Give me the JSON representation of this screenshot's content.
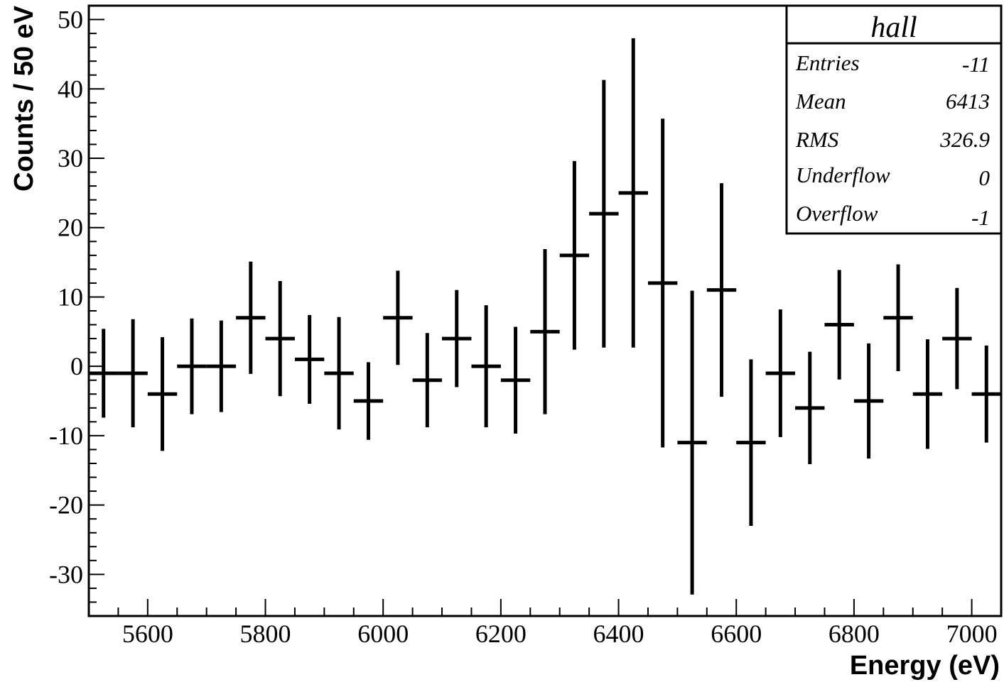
{
  "chart_data": {
    "type": "scatter",
    "style": "histogram-error-bars",
    "xlabel": "Energy (eV)",
    "ylabel": "Counts / 50 eV",
    "xlim": [
      5500,
      7050
    ],
    "ylim": [
      -36,
      52
    ],
    "x_ticks": [
      5600,
      5800,
      6000,
      6200,
      6400,
      6600,
      6800,
      7000
    ],
    "y_ticks": [
      -30,
      -20,
      -10,
      0,
      10,
      20,
      30,
      40,
      50
    ],
    "bin_width": 50,
    "series": [
      {
        "x": [
          5525,
          5575,
          5625,
          5675,
          5725,
          5775,
          5825,
          5875,
          5925,
          5975,
          6025,
          6075,
          6125,
          6175,
          6225,
          6275,
          6325,
          6375,
          6425,
          6475,
          6525,
          6575,
          6625,
          6675,
          6725,
          6775,
          6825,
          6875,
          6925,
          6975,
          7025
        ],
        "y": [
          -1,
          -1,
          -4,
          0,
          0,
          7,
          4,
          1,
          -1,
          -5,
          7,
          -2,
          4,
          0,
          -2,
          5,
          16,
          22,
          25,
          12,
          -11,
          11,
          -11,
          -1,
          -6,
          6,
          -5,
          7,
          -4,
          4,
          -4
        ],
        "err": [
          6.4,
          7.8,
          8.2,
          6.9,
          6.6,
          8.1,
          8.3,
          6.4,
          8.1,
          5.6,
          6.8,
          6.8,
          7.0,
          8.8,
          7.7,
          11.9,
          13.6,
          19.3,
          22.3,
          23.7,
          21.9,
          15.4,
          12.0,
          9.2,
          8.1,
          7.9,
          8.3,
          7.7,
          7.9,
          7.3,
          7.0
        ]
      }
    ],
    "stats_box": {
      "title": "hall",
      "rows": [
        {
          "label": "Entries",
          "value": "-11"
        },
        {
          "label": "Mean",
          "value": "6413"
        },
        {
          "label": "RMS",
          "value": "326.9"
        },
        {
          "label": "Underflow",
          "value": "0"
        },
        {
          "label": "Overflow",
          "value": "-1"
        }
      ]
    }
  }
}
